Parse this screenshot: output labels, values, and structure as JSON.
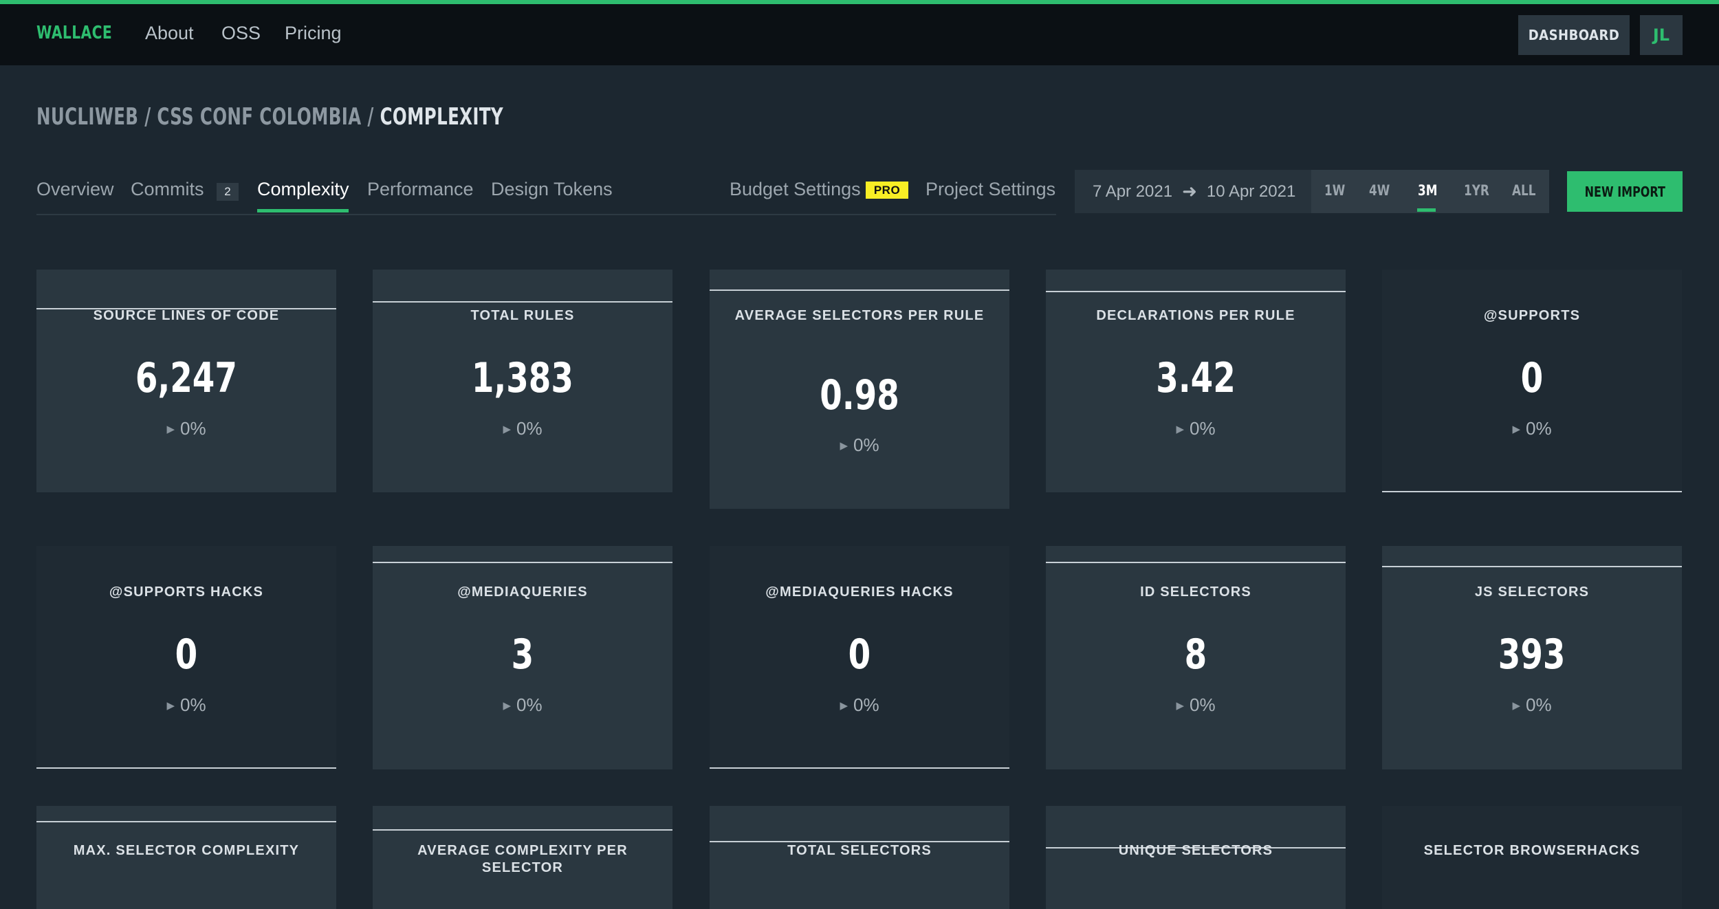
{
  "nav": {
    "logo": "WALLACE",
    "links": [
      "About",
      "OSS",
      "Pricing"
    ],
    "dashboard_label": "DASHBOARD",
    "avatar_initials": "JL"
  },
  "breadcrumb": {
    "org": "NUCLIWEB",
    "project": "CSS CONF COLOMBIA",
    "page": "COMPLEXITY",
    "separator": "/"
  },
  "tabs": {
    "overview": "Overview",
    "commits": "Commits",
    "commits_count": "2",
    "complexity": "Complexity",
    "performance": "Performance",
    "design_tokens": "Design Tokens",
    "budget_settings": "Budget Settings",
    "pro_badge": "PRO",
    "project_settings": "Project Settings"
  },
  "daterange": {
    "from": "7 Apr 2021",
    "to": "10 Apr 2021"
  },
  "periods": {
    "p1w": "1W",
    "p4w": "4W",
    "p3m": "3M",
    "p1yr": "1YR",
    "all": "ALL",
    "selected": "3M"
  },
  "new_import_label": "NEW IMPORT",
  "metrics": [
    {
      "label": "SOURCE LINES OF CODE",
      "value": "6,247",
      "delta": "0%"
    },
    {
      "label": "TOTAL RULES",
      "value": "1,383",
      "delta": "0%"
    },
    {
      "label": "AVERAGE SELECTORS PER RULE",
      "value": "0.98",
      "delta": "0%"
    },
    {
      "label": "DECLARATIONS PER RULE",
      "value": "3.42",
      "delta": "0%"
    },
    {
      "label": "@SUPPORTS",
      "value": "0",
      "delta": "0%"
    },
    {
      "label": "@SUPPORTS HACKS",
      "value": "0",
      "delta": "0%"
    },
    {
      "label": "@MEDIAQUERIES",
      "value": "3",
      "delta": "0%"
    },
    {
      "label": "@MEDIAQUERIES HACKS",
      "value": "0",
      "delta": "0%"
    },
    {
      "label": "ID SELECTORS",
      "value": "8",
      "delta": "0%"
    },
    {
      "label": "JS SELECTORS",
      "value": "393",
      "delta": "0%"
    },
    {
      "label": "MAX. SELECTOR COMPLEXITY",
      "value": "",
      "delta": ""
    },
    {
      "label": "AVERAGE COMPLEXITY PER SELECTOR",
      "value": "",
      "delta": ""
    },
    {
      "label": "TOTAL SELECTORS",
      "value": "",
      "delta": ""
    },
    {
      "label": "UNIQUE SELECTORS",
      "value": "",
      "delta": ""
    },
    {
      "label": "SELECTOR BROWSERHACKS",
      "value": "",
      "delta": ""
    }
  ],
  "colors": {
    "accent": "#2ebd6f",
    "card_light": "#2a3740",
    "card_dark": "#1f2a33",
    "pro_badge": "#f8ee25"
  }
}
